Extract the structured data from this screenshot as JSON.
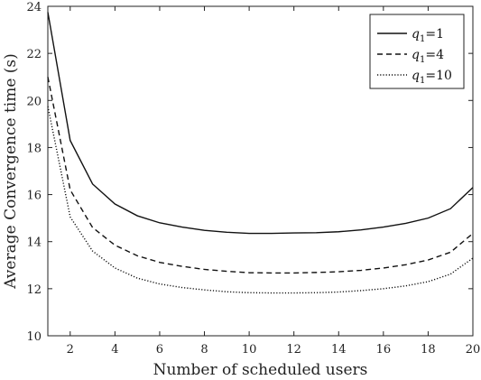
{
  "chart_data": {
    "type": "line",
    "title": "",
    "xlabel": "Number of scheduled users",
    "ylabel": "Average Convergence time (s)",
    "xlim": [
      1,
      20
    ],
    "ylim": [
      10,
      24
    ],
    "xticks": [
      2,
      4,
      6,
      8,
      10,
      12,
      14,
      16,
      18,
      20
    ],
    "yticks": [
      10,
      12,
      14,
      16,
      18,
      20,
      22,
      24
    ],
    "grid": false,
    "legend_position": "top-right",
    "x": [
      1,
      2,
      3,
      4,
      5,
      6,
      7,
      8,
      9,
      10,
      11,
      12,
      13,
      14,
      15,
      16,
      17,
      18,
      19,
      20
    ],
    "series": [
      {
        "name": "q1=1",
        "name_main": "q",
        "name_sub": "1",
        "name_rest": "=1",
        "dash": "solid",
        "values": [
          23.75,
          18.3,
          16.45,
          15.6,
          15.1,
          14.8,
          14.62,
          14.48,
          14.4,
          14.35,
          14.35,
          14.37,
          14.38,
          14.42,
          14.5,
          14.62,
          14.78,
          15.0,
          15.4,
          16.3
        ]
      },
      {
        "name": "q1=4",
        "name_main": "q",
        "name_sub": "1",
        "name_rest": "=4",
        "dash": "dashed",
        "values": [
          21.0,
          16.2,
          14.6,
          13.85,
          13.4,
          13.12,
          12.95,
          12.82,
          12.74,
          12.68,
          12.67,
          12.67,
          12.69,
          12.72,
          12.78,
          12.88,
          13.02,
          13.22,
          13.55,
          14.35
        ]
      },
      {
        "name": "q1=10",
        "name_main": "q",
        "name_sub": "1",
        "name_rest": "=10",
        "dash": "dotted",
        "values": [
          19.75,
          15.05,
          13.6,
          12.88,
          12.45,
          12.2,
          12.05,
          11.95,
          11.87,
          11.83,
          11.82,
          11.82,
          11.83,
          11.86,
          11.92,
          12.0,
          12.12,
          12.3,
          12.62,
          13.3
        ]
      }
    ]
  }
}
